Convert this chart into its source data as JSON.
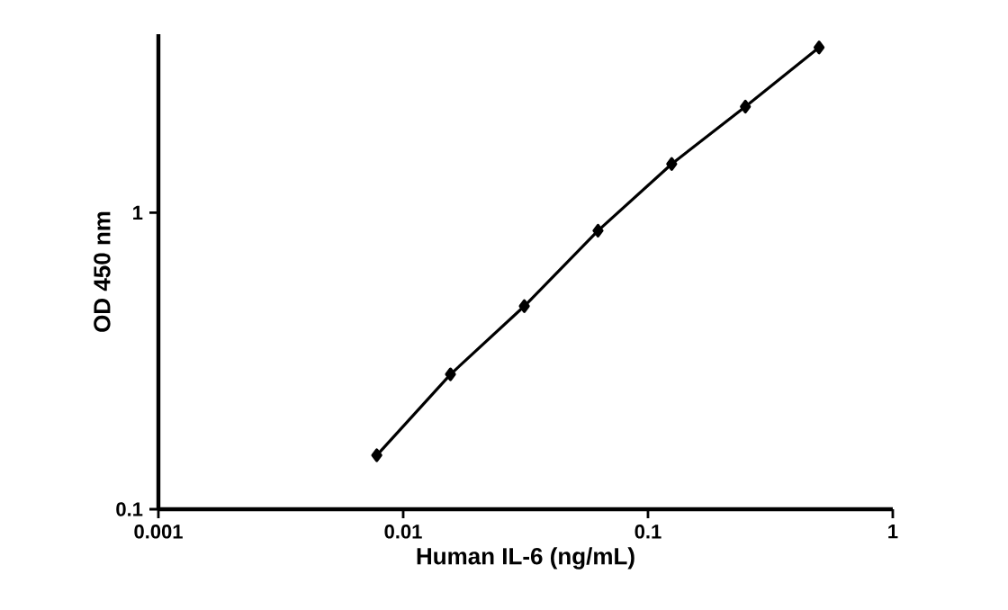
{
  "chart_data": {
    "type": "line",
    "xlabel": "Human IL-6 (ng/mL)",
    "ylabel": "OD 450 nm",
    "log": "xy",
    "marker": "diamond",
    "line_style": "solid",
    "grid": false,
    "xlim": [
      0.001,
      1
    ],
    "xticks": [
      0.001,
      0.01,
      0.1,
      1
    ],
    "ylim": [
      0.1,
      4
    ],
    "yticks": [
      0.1,
      1
    ],
    "series": [
      {
        "color": "#000000",
        "x": [
          0.0078,
          0.0156,
          0.03125,
          0.0625,
          0.125,
          0.25,
          0.5
        ],
        "values": [
          0.152,
          0.285,
          0.484,
          0.87,
          1.46,
          2.28,
          3.61
        ]
      }
    ]
  }
}
